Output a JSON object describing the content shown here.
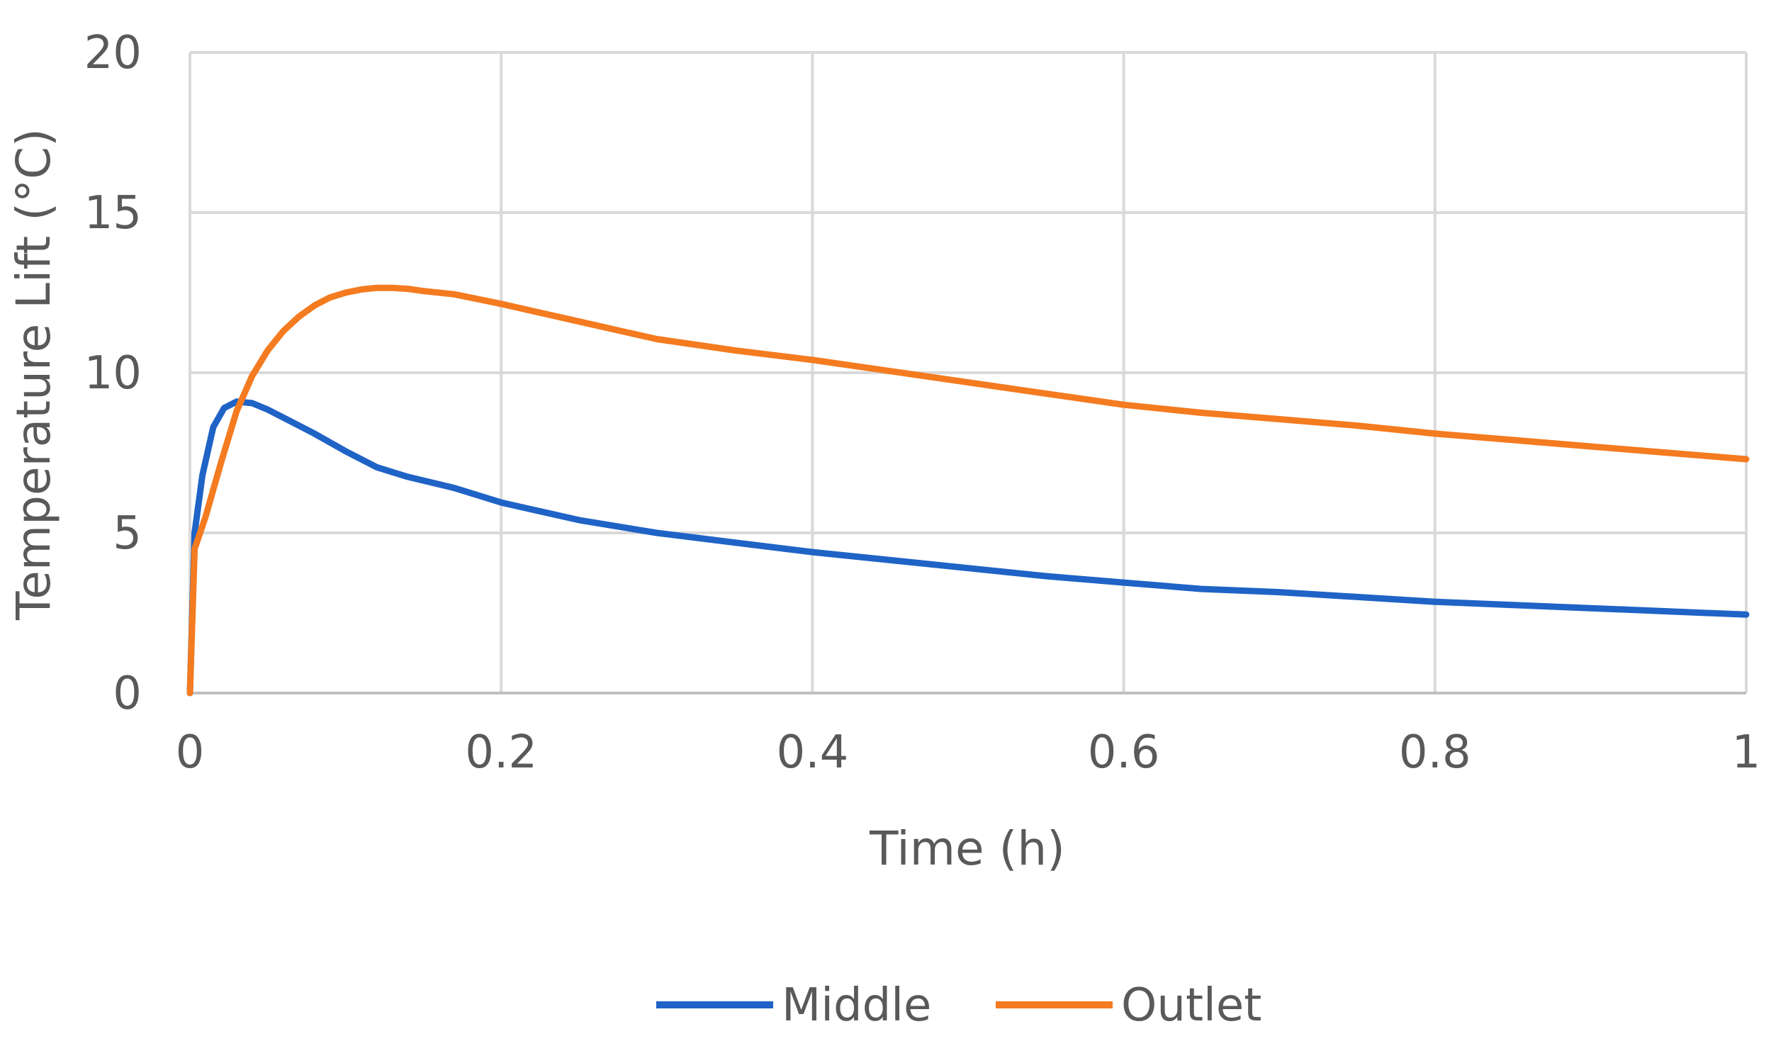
{
  "chart_data": {
    "type": "line",
    "xlabel": "Time (h)",
    "ylabel": "Temperature Lift (°C)",
    "xlim": [
      0,
      1
    ],
    "ylim": [
      0,
      20
    ],
    "x_ticks": [
      "0",
      "0.2",
      "0.4",
      "0.6",
      "0.8",
      "1"
    ],
    "y_ticks": [
      "0",
      "5",
      "10",
      "15",
      "20"
    ],
    "grid": true,
    "legend": "bottom",
    "series": [
      {
        "name": "Middle",
        "color": "#1f63c6",
        "x": [
          0,
          0.003,
          0.008,
          0.015,
          0.022,
          0.03,
          0.04,
          0.05,
          0.06,
          0.08,
          0.1,
          0.12,
          0.14,
          0.17,
          0.2,
          0.25,
          0.3,
          0.35,
          0.4,
          0.45,
          0.5,
          0.55,
          0.6,
          0.65,
          0.7,
          0.75,
          0.8,
          0.85,
          0.9,
          0.95,
          1.0
        ],
        "y": [
          0,
          5.0,
          6.8,
          8.3,
          8.9,
          9.1,
          9.05,
          8.85,
          8.6,
          8.1,
          7.55,
          7.05,
          6.75,
          6.4,
          5.95,
          5.4,
          5.0,
          4.7,
          4.4,
          4.15,
          3.9,
          3.65,
          3.45,
          3.25,
          3.15,
          3.0,
          2.85,
          2.75,
          2.65,
          2.55,
          2.45
        ]
      },
      {
        "name": "Outlet",
        "color": "#f47b20",
        "x": [
          0,
          0.003,
          0.01,
          0.02,
          0.03,
          0.04,
          0.05,
          0.06,
          0.07,
          0.08,
          0.09,
          0.1,
          0.11,
          0.12,
          0.13,
          0.14,
          0.15,
          0.17,
          0.2,
          0.25,
          0.3,
          0.35,
          0.4,
          0.45,
          0.5,
          0.55,
          0.6,
          0.65,
          0.7,
          0.75,
          0.8,
          0.85,
          0.9,
          0.95,
          1.0
        ],
        "y": [
          0,
          4.5,
          5.5,
          7.2,
          8.8,
          9.9,
          10.7,
          11.3,
          11.75,
          12.1,
          12.35,
          12.5,
          12.6,
          12.65,
          12.65,
          12.62,
          12.55,
          12.45,
          12.15,
          11.6,
          11.05,
          10.7,
          10.4,
          10.05,
          9.7,
          9.35,
          9.0,
          8.75,
          8.55,
          8.35,
          8.1,
          7.9,
          7.7,
          7.5,
          7.3
        ]
      }
    ]
  }
}
